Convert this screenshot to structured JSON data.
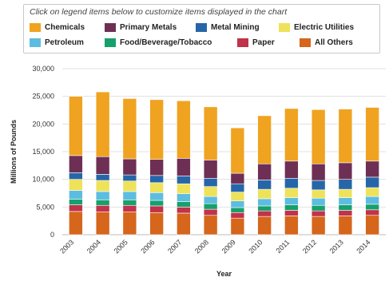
{
  "legend_hint": "Click on legend items below to customize items displayed in the chart",
  "chart_data": {
    "type": "bar",
    "stacked": true,
    "xlabel": "Year",
    "ylabel": "Millions of Pounds",
    "ylim": [
      0,
      30000
    ],
    "yticks": [
      0,
      5000,
      10000,
      15000,
      20000,
      25000,
      30000
    ],
    "ytick_labels": [
      "0",
      "5,000",
      "10,000",
      "15,000",
      "20,000",
      "25,000",
      "30,000"
    ],
    "grid": true,
    "legend_position": "top",
    "categories": [
      "2003",
      "2004",
      "2005",
      "2006",
      "2007",
      "2008",
      "2009",
      "2010",
      "2011",
      "2012",
      "2013",
      "2014"
    ],
    "series": [
      {
        "name": "All Others",
        "color": "#d5661c",
        "values": [
          4200,
          4100,
          4100,
          4000,
          3900,
          3500,
          3000,
          3300,
          3400,
          3300,
          3400,
          3500
        ]
      },
      {
        "name": "Paper",
        "color": "#c0334a",
        "values": [
          1200,
          1200,
          1200,
          1200,
          1100,
          1100,
          1000,
          1000,
          1000,
          1000,
          1000,
          1000
        ]
      },
      {
        "name": "Food/Beverage/Tobacco",
        "color": "#16a06c",
        "values": [
          1000,
          1000,
          1000,
          1000,
          1000,
          1000,
          900,
          900,
          1000,
          1000,
          1000,
          1000
        ]
      },
      {
        "name": "Petroleum",
        "color": "#5dbde0",
        "values": [
          1600,
          1500,
          1500,
          1400,
          1400,
          1300,
          1200,
          1300,
          1300,
          1300,
          1300,
          1400
        ]
      },
      {
        "name": "Electric Utilities",
        "color": "#ede25a",
        "values": [
          2000,
          2000,
          1900,
          1800,
          1800,
          1800,
          1600,
          1700,
          1700,
          1500,
          1500,
          1600
        ]
      },
      {
        "name": "Metal Mining",
        "color": "#2666a8",
        "values": [
          1200,
          1100,
          1100,
          1300,
          1400,
          1500,
          1500,
          1700,
          1800,
          1700,
          1800,
          1900
        ]
      },
      {
        "name": "Primary Metals",
        "color": "#6e2f55",
        "values": [
          3100,
          3200,
          2900,
          2900,
          3200,
          3300,
          1900,
          2900,
          3100,
          3000,
          3000,
          2900
        ]
      },
      {
        "name": "Chemicals",
        "color": "#f0a320",
        "values": [
          10700,
          11700,
          10900,
          10800,
          10400,
          9600,
          8200,
          8700,
          9500,
          9800,
          9700,
          9700
        ]
      }
    ]
  },
  "legend": [
    {
      "label": "Chemicals",
      "color": "#f0a320"
    },
    {
      "label": "Primary Metals",
      "color": "#6e2f55"
    },
    {
      "label": "Metal Mining",
      "color": "#2666a8"
    },
    {
      "label": "Electric Utilities",
      "color": "#ede25a"
    },
    {
      "label": "Petroleum",
      "color": "#5dbde0"
    },
    {
      "label": "Food/Beverage/Tobacco",
      "color": "#16a06c"
    },
    {
      "label": "Paper",
      "color": "#c0334a"
    },
    {
      "label": "All Others",
      "color": "#d5661c"
    }
  ]
}
